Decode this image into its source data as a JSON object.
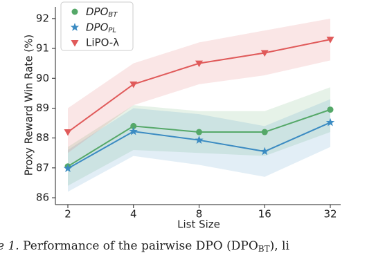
{
  "chart_data": {
    "type": "line",
    "x_label": "List Size",
    "y_label": "Proxy Reward Win Rate (%)",
    "categories": [
      "2",
      "4",
      "8",
      "16",
      "32"
    ],
    "ylim": [
      85.77,
      92.39
    ],
    "yticks": [
      86,
      87,
      88,
      89,
      90,
      91,
      92
    ],
    "legend": "upper left",
    "series": [
      {
        "name": "DPO_BT",
        "color": "#55a868",
        "marker": "circle",
        "values": [
          87.05,
          88.4,
          88.2,
          88.2,
          88.95
        ],
        "lower": [
          86.4,
          87.6,
          87.5,
          87.4,
          88.2
        ],
        "upper": [
          87.7,
          89.1,
          88.9,
          88.9,
          89.7
        ]
      },
      {
        "name": "DPO_PL",
        "color": "#3b8bc2",
        "marker": "star",
        "values": [
          86.98,
          88.22,
          87.93,
          87.55,
          88.52
        ],
        "lower": [
          86.2,
          87.4,
          87.1,
          86.7,
          87.7
        ],
        "upper": [
          87.6,
          89.0,
          88.8,
          88.4,
          89.3
        ]
      },
      {
        "name": "LiPO-λ",
        "color": "#e05a5a",
        "marker": "triangle-down",
        "values": [
          88.2,
          89.8,
          90.5,
          90.85,
          91.3
        ],
        "lower": [
          87.5,
          89.1,
          89.8,
          90.1,
          90.6
        ],
        "upper": [
          89.0,
          90.5,
          91.2,
          91.6,
          92.0
        ]
      }
    ]
  },
  "caption": [
    "e 1.",
    " Performance of the pairwise DPO (DPO",
    "BT",
    "), li"
  ]
}
